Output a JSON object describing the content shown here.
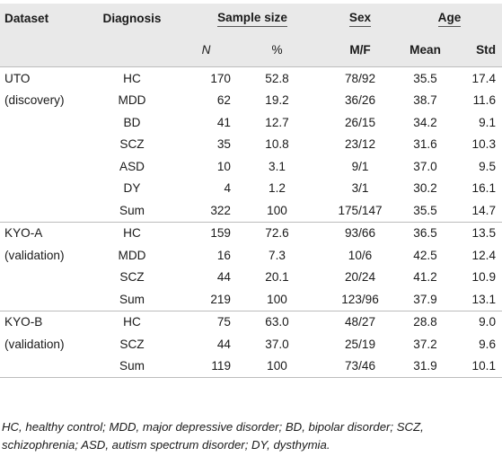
{
  "headers": {
    "dataset": "Dataset",
    "diagnosis": "Diagnosis",
    "sample_size": "Sample size",
    "sex": "Sex",
    "age": "Age",
    "n": "N",
    "pct": "%",
    "mf": "M/F",
    "mean": "Mean",
    "std": "Std"
  },
  "rows": [
    {
      "dataset": "UTO",
      "dx": "HC",
      "n": "170",
      "pct": "52.8",
      "mf": "78/92",
      "mean": "35.5",
      "std": "17.4"
    },
    {
      "dataset": "(discovery)",
      "dx": "MDD",
      "n": "62",
      "pct": "19.2",
      "mf": "36/26",
      "mean": "38.7",
      "std": "11.6"
    },
    {
      "dataset": "",
      "dx": "BD",
      "n": "41",
      "pct": "12.7",
      "mf": "26/15",
      "mean": "34.2",
      "std": "9.1"
    },
    {
      "dataset": "",
      "dx": "SCZ",
      "n": "35",
      "pct": "10.8",
      "mf": "23/12",
      "mean": "31.6",
      "std": "10.3"
    },
    {
      "dataset": "",
      "dx": "ASD",
      "n": "10",
      "pct": "3.1",
      "mf": "9/1",
      "mean": "37.0",
      "std": "9.5"
    },
    {
      "dataset": "",
      "dx": "DY",
      "n": "4",
      "pct": "1.2",
      "mf": "3/1",
      "mean": "30.2",
      "std": "16.1"
    },
    {
      "dataset": "",
      "dx": "Sum",
      "n": "322",
      "pct": "100",
      "mf": "175/147",
      "mean": "35.5",
      "std": "14.7"
    },
    {
      "dataset": "KYO-A",
      "dx": "HC",
      "n": "159",
      "pct": "72.6",
      "mf": "93/66",
      "mean": "36.5",
      "std": "13.5"
    },
    {
      "dataset": "(validation)",
      "dx": "MDD",
      "n": "16",
      "pct": "7.3",
      "mf": "10/6",
      "mean": "42.5",
      "std": "12.4"
    },
    {
      "dataset": "",
      "dx": "SCZ",
      "n": "44",
      "pct": "20.1",
      "mf": "20/24",
      "mean": "41.2",
      "std": "10.9"
    },
    {
      "dataset": "",
      "dx": "Sum",
      "n": "219",
      "pct": "100",
      "mf": "123/96",
      "mean": "37.9",
      "std": "13.1"
    },
    {
      "dataset": "KYO-B",
      "dx": "HC",
      "n": "75",
      "pct": "63.0",
      "mf": "48/27",
      "mean": "28.8",
      "std": "9.0"
    },
    {
      "dataset": "(validation)",
      "dx": "SCZ",
      "n": "44",
      "pct": "37.0",
      "mf": "25/19",
      "mean": "37.2",
      "std": "9.6"
    },
    {
      "dataset": "",
      "dx": "Sum",
      "n": "119",
      "pct": "100",
      "mf": "73/46",
      "mean": "31.9",
      "std": "10.1"
    }
  ],
  "footnote": "HC, healthy control; MDD, major depressive disorder; BD, bipolar disorder; SCZ, schizophrenia; ASD, autism spectrum disorder; DY, dysthymia."
}
